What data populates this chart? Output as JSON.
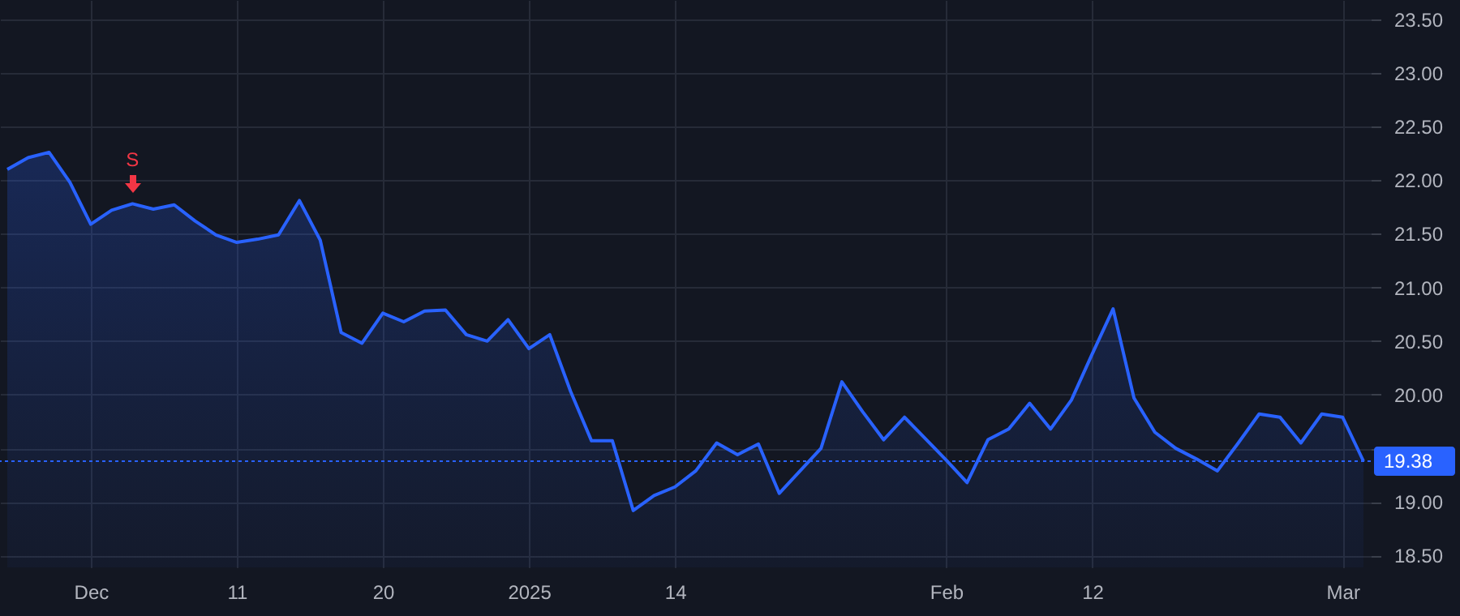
{
  "chart_data": {
    "type": "area",
    "categories": [
      null,
      null,
      null,
      null,
      "Dec",
      null,
      null,
      null,
      null,
      null,
      null,
      "11",
      null,
      null,
      null,
      null,
      null,
      null,
      "20",
      null,
      null,
      null,
      null,
      null,
      null,
      "2025",
      null,
      null,
      null,
      null,
      null,
      null,
      "14",
      null,
      null,
      null,
      null,
      null,
      null,
      null,
      null,
      null,
      null,
      null,
      null,
      "Feb",
      null,
      null,
      null,
      null,
      null,
      null,
      "12",
      null,
      null,
      null,
      null,
      null,
      null,
      null,
      null,
      null,
      null,
      null,
      "Mar",
      null
    ],
    "series": [
      {
        "color": "#2962ff",
        "values": [
          22.1,
          22.21,
          22.26,
          21.98,
          21.59,
          21.72,
          21.78,
          21.73,
          21.77,
          21.62,
          21.49,
          21.42,
          21.45,
          21.49,
          21.81,
          21.44,
          20.58,
          20.48,
          20.76,
          20.68,
          20.78,
          20.79,
          20.56,
          20.5,
          20.7,
          20.43,
          20.56,
          20.03,
          19.57,
          19.57,
          18.92,
          19.06,
          19.14,
          19.29,
          19.55,
          19.44,
          19.54,
          19.08,
          19.29,
          19.5,
          20.12,
          19.84,
          19.58,
          19.79,
          19.59,
          19.39,
          19.18,
          19.58,
          19.68,
          19.92,
          19.68,
          19.95,
          20.38,
          20.8,
          19.97,
          19.65,
          19.5,
          19.4,
          19.29,
          19.55,
          19.82,
          19.79,
          19.55,
          19.82,
          19.79,
          19.38
        ]
      }
    ],
    "ylim": [
      18.39,
      23.68
    ],
    "yticks": [
      {
        "value": 18.5,
        "label": "18.50"
      },
      {
        "value": 19,
        "label": "19.00"
      },
      {
        "value": 19.5,
        "label": null
      },
      {
        "value": 20,
        "label": "20.00"
      },
      {
        "value": 20.5,
        "label": "20.50"
      },
      {
        "value": 21,
        "label": "21.00"
      },
      {
        "value": 21.5,
        "label": "21.50"
      },
      {
        "value": 22,
        "label": "22.00"
      },
      {
        "value": 22.5,
        "label": "22.50"
      },
      {
        "value": 23,
        "label": "23.00"
      },
      {
        "value": 23.5,
        "label": "23.50"
      }
    ],
    "ref_lines": [
      {
        "axis": "y",
        "value": 19.38,
        "label": "19.38",
        "color": "#2962ff",
        "line_style": "dotted"
      }
    ],
    "annotations": [
      {
        "text": "S",
        "y": 21.78
      }
    ],
    "grid": true
  }
}
